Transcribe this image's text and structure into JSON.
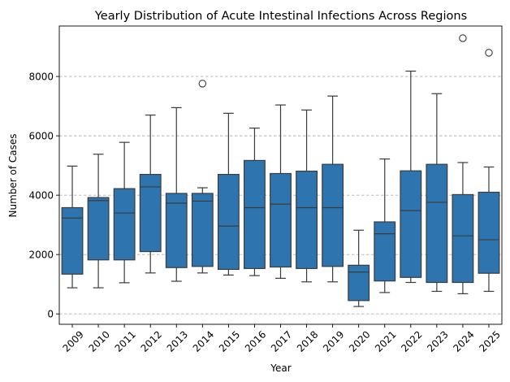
{
  "chart_data": {
    "type": "box",
    "title": "Yearly Distribution of Acute Intestinal Infections Across Regions",
    "xlabel": "Year",
    "ylabel": "Number of Cases",
    "categories": [
      "2009",
      "2010",
      "2011",
      "2012",
      "2013",
      "2014",
      "2015",
      "2016",
      "2017",
      "2018",
      "2019",
      "2020",
      "2021",
      "2022",
      "2023",
      "2024",
      "2025"
    ],
    "ylim": [
      -350,
      9700
    ],
    "yticks": [
      0,
      2000,
      4000,
      6000,
      8000
    ],
    "ytick_labels": [
      "0",
      "2000",
      "4000",
      "6000",
      "8000"
    ],
    "grid": "y-dashed",
    "color": "#2e75b0",
    "boxes": [
      {
        "min": 880,
        "q1": 1340,
        "median": 3230,
        "q3": 3580,
        "max": 4980,
        "outliers": []
      },
      {
        "min": 880,
        "q1": 1820,
        "median": 3820,
        "q3": 3920,
        "max": 5380,
        "outliers": []
      },
      {
        "min": 1050,
        "q1": 1820,
        "median": 3400,
        "q3": 4220,
        "max": 5780,
        "outliers": []
      },
      {
        "min": 1380,
        "q1": 2100,
        "median": 4280,
        "q3": 4700,
        "max": 6700,
        "outliers": []
      },
      {
        "min": 1100,
        "q1": 1560,
        "median": 3730,
        "q3": 4060,
        "max": 6950,
        "outliers": []
      },
      {
        "min": 1380,
        "q1": 1600,
        "median": 3800,
        "q3": 4060,
        "max": 4250,
        "outliers": [
          7760
        ]
      },
      {
        "min": 1310,
        "q1": 1500,
        "median": 2960,
        "q3": 4700,
        "max": 6760,
        "outliers": []
      },
      {
        "min": 1290,
        "q1": 1530,
        "median": 3580,
        "q3": 5170,
        "max": 6260,
        "outliers": []
      },
      {
        "min": 1200,
        "q1": 1580,
        "median": 3700,
        "q3": 4730,
        "max": 7040,
        "outliers": []
      },
      {
        "min": 1080,
        "q1": 1530,
        "median": 3580,
        "q3": 4810,
        "max": 6870,
        "outliers": []
      },
      {
        "min": 1080,
        "q1": 1600,
        "median": 3580,
        "q3": 5040,
        "max": 7340,
        "outliers": []
      },
      {
        "min": 250,
        "q1": 450,
        "median": 1410,
        "q3": 1640,
        "max": 2820,
        "outliers": []
      },
      {
        "min": 720,
        "q1": 1110,
        "median": 2700,
        "q3": 3100,
        "max": 5220,
        "outliers": []
      },
      {
        "min": 1060,
        "q1": 1230,
        "median": 3480,
        "q3": 4820,
        "max": 8180,
        "outliers": []
      },
      {
        "min": 760,
        "q1": 1060,
        "median": 3760,
        "q3": 5040,
        "max": 7420,
        "outliers": []
      },
      {
        "min": 680,
        "q1": 1060,
        "median": 2630,
        "q3": 4020,
        "max": 5100,
        "outliers": [
          9290
        ]
      },
      {
        "min": 760,
        "q1": 1370,
        "median": 2500,
        "q3": 4100,
        "max": 4950,
        "outliers": [
          8800
        ]
      }
    ]
  }
}
